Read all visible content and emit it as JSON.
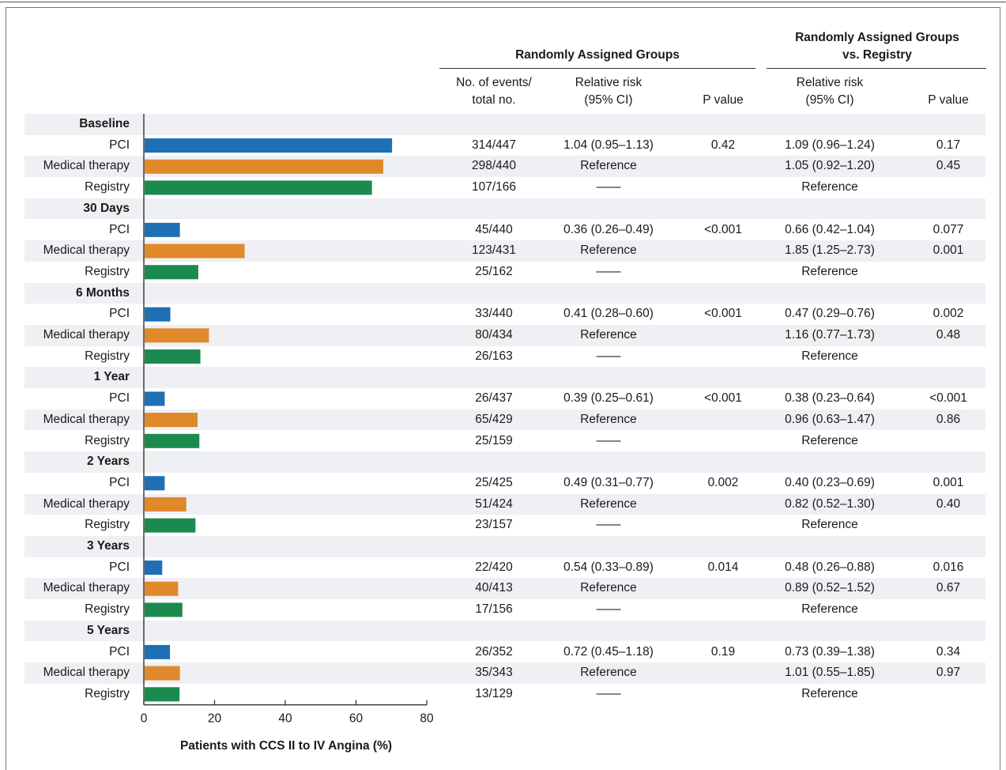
{
  "chart_data": {
    "type": "bar",
    "orientation": "horizontal",
    "xlabel": "Patients with CCS II to IV Angina (%)",
    "xlim": [
      0,
      80
    ],
    "xticks": [
      "0",
      "20",
      "40",
      "60",
      "80"
    ],
    "colors": {
      "PCI": "#1f6fb5",
      "Medical therapy": "#e0892a",
      "Registry": "#1a8a4f"
    },
    "group_labels": [
      "Baseline",
      "30 Days",
      "6 Months",
      "1 Year",
      "2 Years",
      "3 Years",
      "5 Years"
    ],
    "series": [
      {
        "name": "PCI",
        "values": [
          70.2,
          10.2,
          7.5,
          5.9,
          5.9,
          5.2,
          7.4
        ]
      },
      {
        "name": "Medical therapy",
        "values": [
          67.7,
          28.5,
          18.4,
          15.2,
          12.0,
          9.7,
          10.2
        ]
      },
      {
        "name": "Registry",
        "values": [
          64.5,
          15.4,
          16.0,
          15.7,
          14.6,
          10.9,
          10.1
        ]
      }
    ]
  },
  "table": {
    "header_rand": "Randomly Assigned Groups",
    "header_reg_line1": "Randomly Assigned Groups",
    "header_reg_line2": "vs. Registry",
    "col_events_1": "No. of events/",
    "col_events_2": "total no.",
    "col_rr_1": "Relative risk",
    "col_rr_2": "(95% CI)",
    "col_p": "P value",
    "col_rr2_1": "Relative risk",
    "col_rr2_2": "(95% CI)",
    "col_p2": "P value",
    "groups": [
      {
        "label": "Baseline",
        "rows": [
          {
            "name": "PCI",
            "events": "314/447",
            "rr": "1.04 (0.95–1.13)",
            "p": "0.42",
            "rr2": "1.09 (0.96–1.24)",
            "p2": "0.17"
          },
          {
            "name": "Medical therapy",
            "events": "298/440",
            "rr": "Reference",
            "p": "",
            "rr2": "1.05 (0.92–1.20)",
            "p2": "0.45"
          },
          {
            "name": "Registry",
            "events": "107/166",
            "rr": "——",
            "p": "",
            "rr2": "Reference",
            "p2": ""
          }
        ]
      },
      {
        "label": "30 Days",
        "rows": [
          {
            "name": "PCI",
            "events": "45/440",
            "rr": "0.36 (0.26–0.49)",
            "p": "<0.001",
            "rr2": "0.66 (0.42–1.04)",
            "p2": "0.077"
          },
          {
            "name": "Medical therapy",
            "events": "123/431",
            "rr": "Reference",
            "p": "",
            "rr2": "1.85 (1.25–2.73)",
            "p2": "0.001"
          },
          {
            "name": "Registry",
            "events": "25/162",
            "rr": "——",
            "p": "",
            "rr2": "Reference",
            "p2": ""
          }
        ]
      },
      {
        "label": "6 Months",
        "rows": [
          {
            "name": "PCI",
            "events": "33/440",
            "rr": "0.41 (0.28–0.60)",
            "p": "<0.001",
            "rr2": "0.47 (0.29–0.76)",
            "p2": "0.002"
          },
          {
            "name": "Medical therapy",
            "events": "80/434",
            "rr": "Reference",
            "p": "",
            "rr2": "1.16 (0.77–1.73)",
            "p2": "0.48"
          },
          {
            "name": "Registry",
            "events": "26/163",
            "rr": "——",
            "p": "",
            "rr2": "Reference",
            "p2": ""
          }
        ]
      },
      {
        "label": "1 Year",
        "rows": [
          {
            "name": "PCI",
            "events": "26/437",
            "rr": "0.39 (0.25–0.61)",
            "p": "<0.001",
            "rr2": "0.38 (0.23–0.64)",
            "p2": "<0.001"
          },
          {
            "name": "Medical therapy",
            "events": "65/429",
            "rr": "Reference",
            "p": "",
            "rr2": "0.96 (0.63–1.47)",
            "p2": "0.86"
          },
          {
            "name": "Registry",
            "events": "25/159",
            "rr": "——",
            "p": "",
            "rr2": "Reference",
            "p2": ""
          }
        ]
      },
      {
        "label": "2 Years",
        "rows": [
          {
            "name": "PCI",
            "events": "25/425",
            "rr": "0.49 (0.31–0.77)",
            "p": "0.002",
            "rr2": "0.40 (0.23–0.69)",
            "p2": "0.001"
          },
          {
            "name": "Medical therapy",
            "events": "51/424",
            "rr": "Reference",
            "p": "",
            "rr2": "0.82 (0.52–1.30)",
            "p2": "0.40"
          },
          {
            "name": "Registry",
            "events": "23/157",
            "rr": "——",
            "p": "",
            "rr2": "Reference",
            "p2": ""
          }
        ]
      },
      {
        "label": "3 Years",
        "rows": [
          {
            "name": "PCI",
            "events": "22/420",
            "rr": "0.54 (0.33–0.89)",
            "p": "0.014",
            "rr2": "0.48 (0.26–0.88)",
            "p2": "0.016"
          },
          {
            "name": "Medical therapy",
            "events": "40/413",
            "rr": "Reference",
            "p": "",
            "rr2": "0.89 (0.52–1.52)",
            "p2": "0.67"
          },
          {
            "name": "Registry",
            "events": "17/156",
            "rr": "——",
            "p": "",
            "rr2": "Reference",
            "p2": ""
          }
        ]
      },
      {
        "label": "5 Years",
        "rows": [
          {
            "name": "PCI",
            "events": "26/352",
            "rr": "0.72 (0.45–1.18)",
            "p": "0.19",
            "rr2": "0.73 (0.39–1.38)",
            "p2": "0.34"
          },
          {
            "name": "Medical therapy",
            "events": "35/343",
            "rr": "Reference",
            "p": "",
            "rr2": "1.01 (0.55–1.85)",
            "p2": "0.97"
          },
          {
            "name": "Registry",
            "events": "13/129",
            "rr": "——",
            "p": "",
            "rr2": "Reference",
            "p2": ""
          }
        ]
      }
    ]
  }
}
